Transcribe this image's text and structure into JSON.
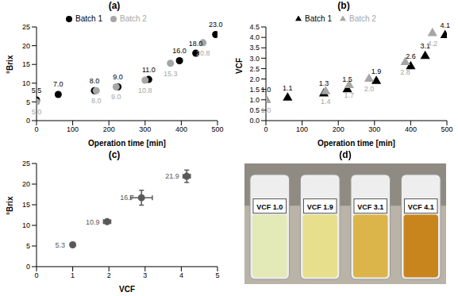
{
  "chart_data": [
    {
      "type": "scatter",
      "title": "(a)",
      "x_label": "Operation time [min]",
      "y_label": "°Brix",
      "xlim": [
        0,
        500
      ],
      "xticks": [
        0,
        100,
        200,
        300,
        400,
        500
      ],
      "ylim": [
        0,
        25
      ],
      "yticks": [
        0,
        5,
        10,
        15,
        20,
        25
      ],
      "legend": "top",
      "data_labels": true,
      "grid": false,
      "series": [
        {
          "name": "Batch 1",
          "color": "#000000",
          "marker": "circle",
          "x": [
            0,
            60,
            160,
            225,
            310,
            395,
            440,
            495
          ],
          "values": [
            5.5,
            7,
            8,
            9,
            11,
            16,
            18,
            23
          ],
          "value_labels": [
            "5.5",
            "7.0",
            "8.0",
            "9.0",
            "11.0",
            "16.0",
            "18.0",
            "23.0"
          ]
        },
        {
          "name": "Batch 2",
          "color": "#a6a6a6",
          "marker": "circle",
          "x": [
            0,
            165,
            220,
            300,
            370,
            460
          ],
          "values": [
            5,
            8,
            9,
            10.8,
            15.3,
            20.8
          ],
          "value_labels": [
            "5.0",
            "8.0",
            "9.0",
            "10.8",
            "15.3",
            "20.8"
          ]
        }
      ]
    },
    {
      "type": "scatter",
      "title": "(b)",
      "x_label": "Operation time [min]",
      "y_label": "VCF",
      "xlim": [
        0,
        500
      ],
      "xticks": [
        0,
        100,
        200,
        300,
        400,
        500
      ],
      "ylim": [
        0,
        4.5
      ],
      "yticks": [
        {
          "value": 0,
          "label": "0.0"
        },
        0.5,
        {
          "value": 1,
          "label": "1.0"
        },
        1.5,
        {
          "value": 2,
          "label": "2.0"
        },
        2.5,
        {
          "value": 3,
          "label": "3.0"
        },
        3.5,
        {
          "value": 4,
          "label": "4.0"
        },
        4.5
      ],
      "legend": "top",
      "data_labels": true,
      "grid": false,
      "series": [
        {
          "name": "Batch 1",
          "color": "#000000",
          "marker": "triangle",
          "x": [
            0,
            60,
            160,
            225,
            305,
            400,
            440,
            495
          ],
          "values": [
            1,
            1.1,
            1.3,
            1.5,
            1.9,
            2.6,
            3.1,
            4.1
          ],
          "value_labels": [
            "1.0",
            "1.1",
            "1.3",
            "1.5",
            "1.9",
            "2.6",
            "3.1",
            "4.1"
          ]
        },
        {
          "name": "Batch 2",
          "color": "#a6a6a6",
          "marker": "triangle",
          "x": [
            0,
            165,
            230,
            285,
            385,
            460
          ],
          "values": [
            1,
            1.4,
            1.7,
            2,
            2.8,
            4.2
          ],
          "value_labels": [
            "1.0",
            "1.4",
            "1.7",
            "2.0",
            "2.8",
            "4.2"
          ]
        }
      ]
    },
    {
      "type": "scatter",
      "title": "(c)",
      "x_label": "VCF",
      "y_label": "°Brix",
      "xlim": [
        0,
        5
      ],
      "xticks": [
        0,
        1,
        2,
        3,
        4,
        5
      ],
      "ylim": [
        0,
        25
      ],
      "yticks": [
        0,
        5,
        10,
        15,
        20,
        25
      ],
      "data_labels": true,
      "grid": false,
      "series": [
        {
          "color": "#595959",
          "marker": "circle",
          "x": [
            1,
            1.95,
            2.9,
            4.15
          ],
          "values": [
            5.3,
            10.9,
            16.7,
            21.9
          ],
          "x_errors": [
            0.05,
            0.1,
            0.3,
            0.1
          ],
          "y_errors": [
            0.3,
            0.4,
            1.8,
            1.5
          ]
        }
      ]
    }
  ],
  "image": {
    "title": "(d)",
    "labels": [
      "VCF 1.0",
      "VCF 1.9",
      "VCF 3.1",
      "VCF 4.1"
    ]
  }
}
